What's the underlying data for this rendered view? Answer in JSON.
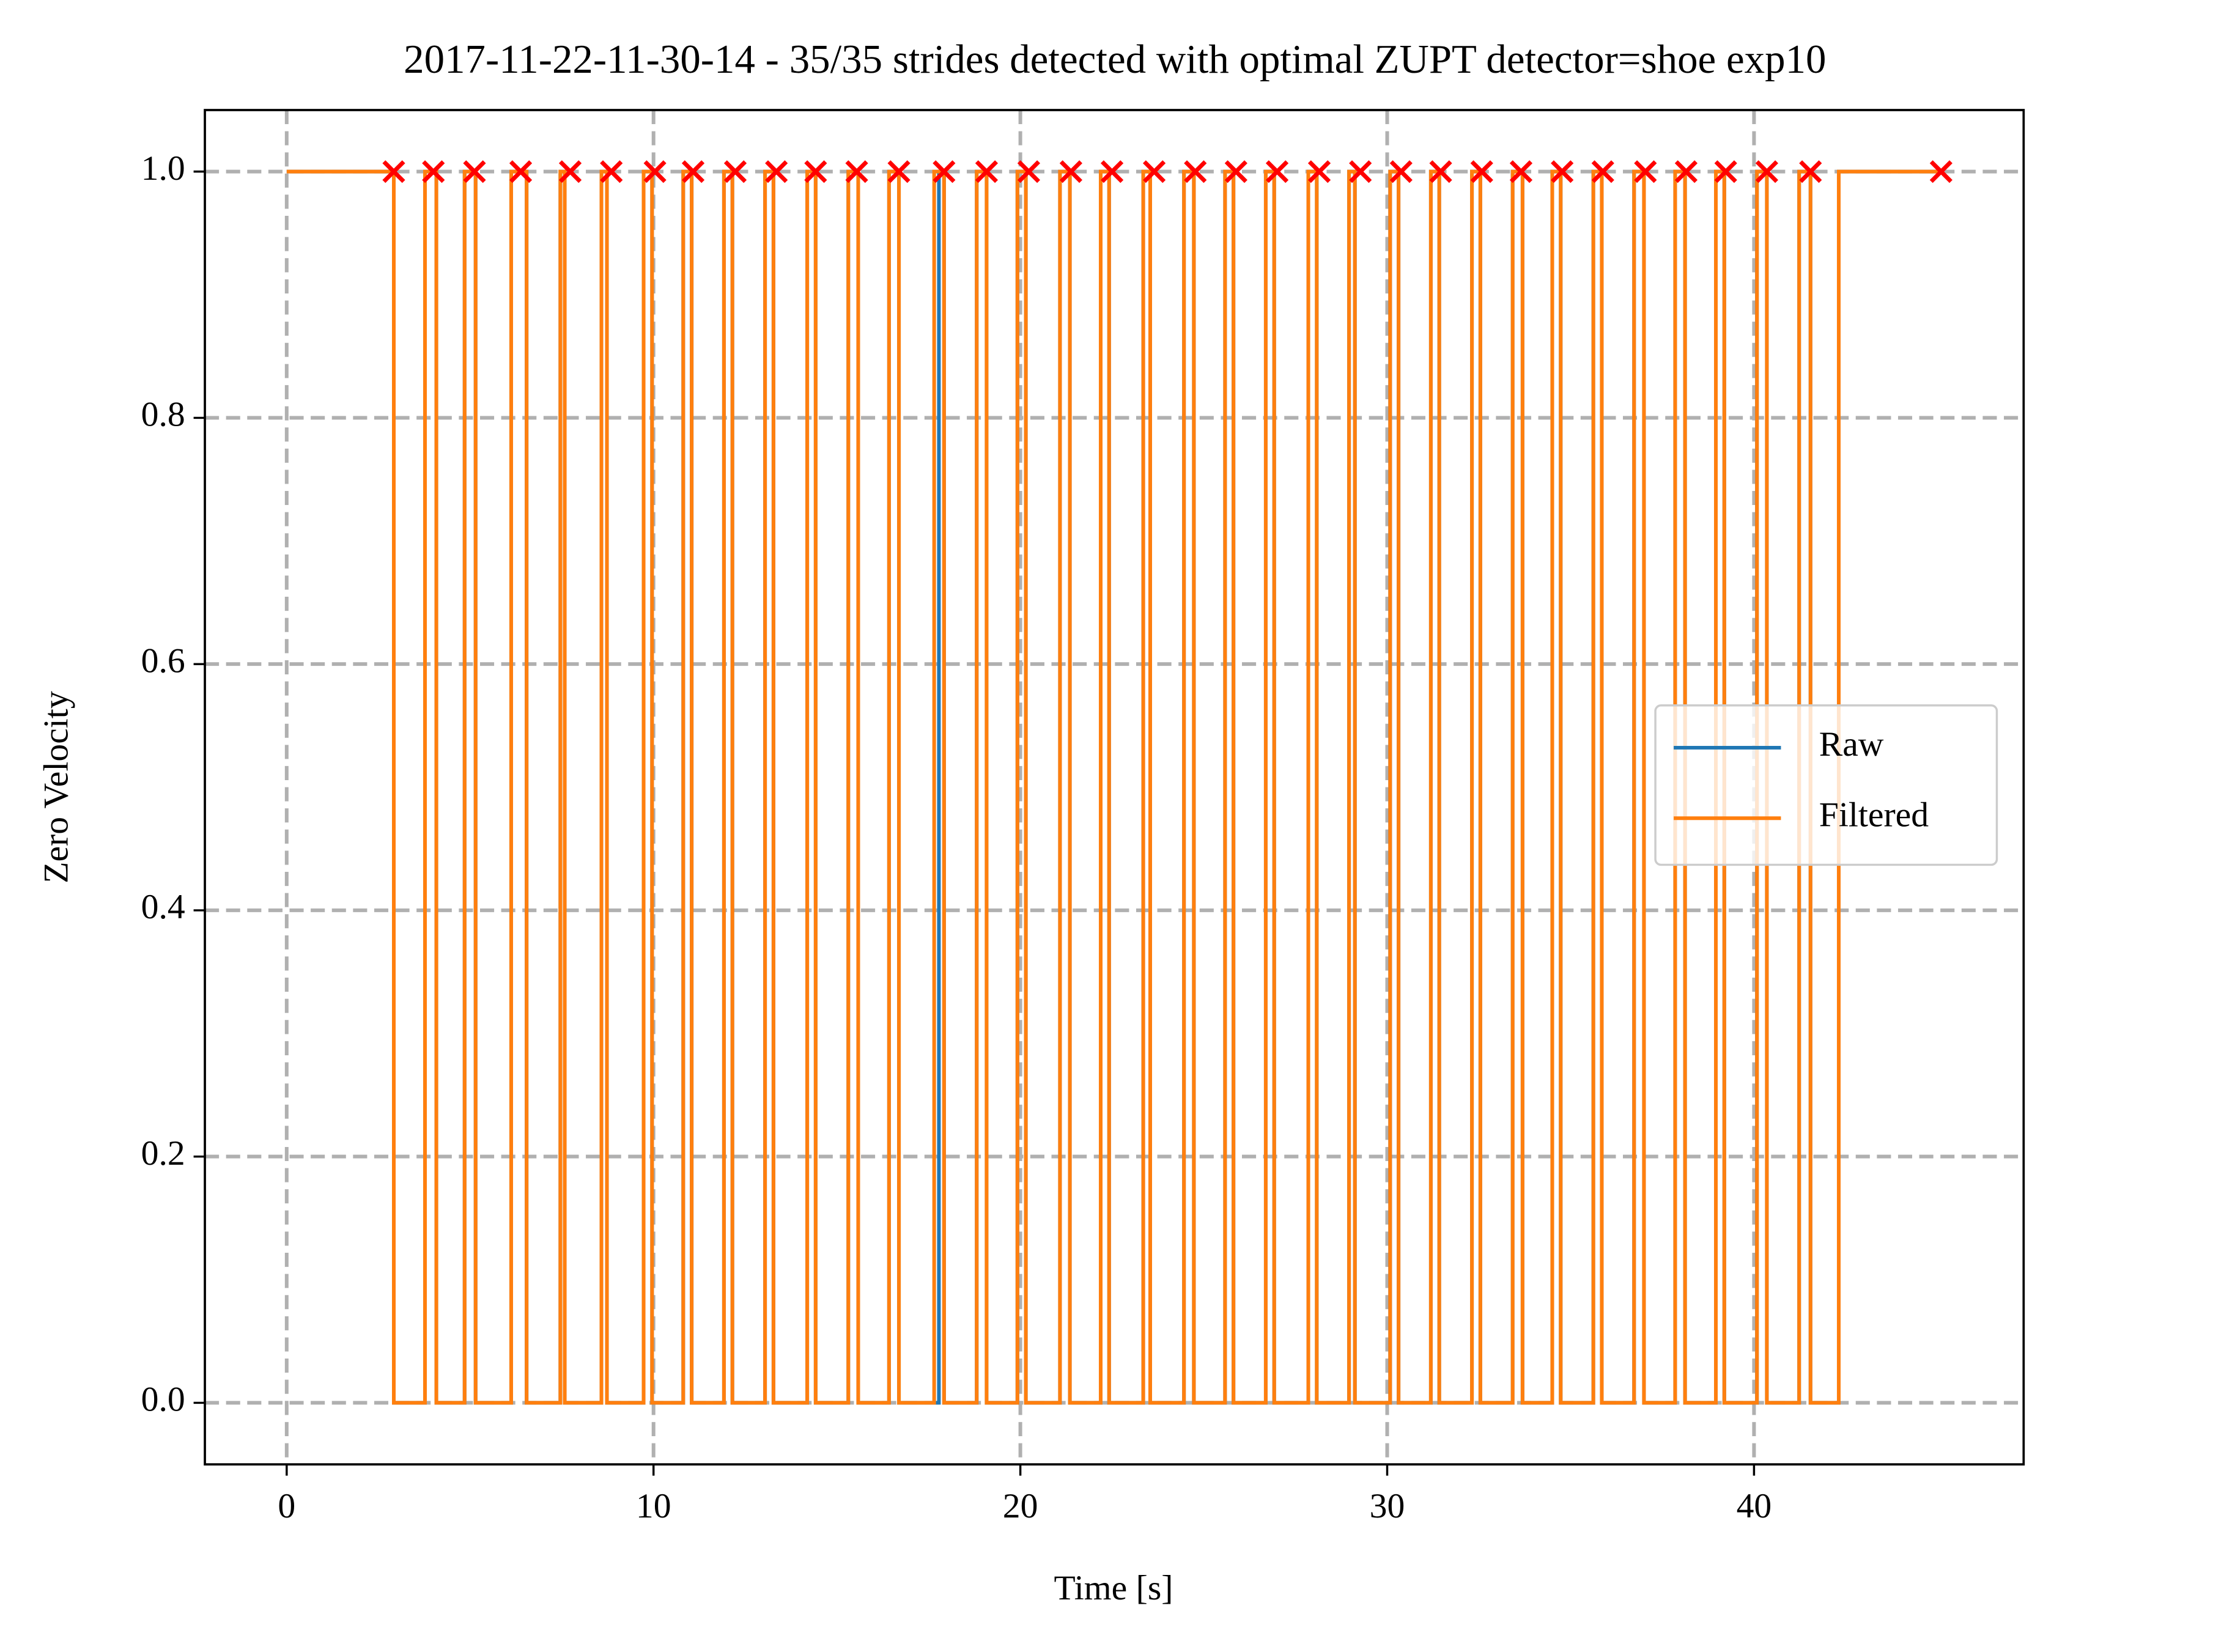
{
  "chart_data": {
    "type": "line",
    "drawstyle": "steps-post",
    "title": "2017-11-22-11-30-14 - 35/35 strides detected with optimal ZUPT detector=shoe exp10",
    "xlabel": "Time [s]",
    "ylabel": "Zero Velocity",
    "xlim": [
      -2.23,
      47.35
    ],
    "ylim": [
      -0.05,
      1.05
    ],
    "xticks": [
      0,
      10,
      20,
      30,
      40
    ],
    "yticks": [
      {
        "value": 0,
        "label": "0.0"
      },
      {
        "value": 0.2,
        "label": "0.2"
      },
      {
        "value": 0.4,
        "label": "0.4"
      },
      {
        "value": 0.6,
        "label": "0.6"
      },
      {
        "value": 0.8,
        "label": "0.8"
      },
      {
        "value": 1,
        "label": "1.0"
      }
    ],
    "grid": true,
    "legend": "center right",
    "series": [
      {
        "name": "Raw",
        "color": "#1f77b4",
        "x": [
          0,
          2.92,
          3.77,
          4.08,
          4.85,
          5.15,
          6.12,
          6.54,
          7.46,
          7.58,
          8.58,
          8.73,
          9.73,
          9.96,
          10.81,
          11.04,
          11.92,
          12.15,
          13.04,
          13.27,
          14.19,
          14.42,
          15.31,
          15.58,
          16.42,
          16.69,
          17.78,
          17.92,
          18.81,
          19.08,
          19.92,
          20.15,
          21.08,
          21.35,
          22.19,
          22.42,
          23.35,
          23.54,
          24.46,
          24.73,
          25.58,
          25.81,
          26.69,
          26.92,
          27.85,
          28.08,
          28.96,
          29.12,
          30.08,
          30.31,
          31.19,
          31.42,
          32.31,
          32.54,
          33.42,
          33.69,
          34.5,
          34.73,
          35.62,
          35.85,
          36.73,
          37.0,
          37.85,
          38.12,
          38.96,
          39.19,
          40.08,
          40.35,
          41.23,
          41.54,
          42.31,
          45.1
        ],
        "values": [
          1,
          0,
          1,
          0,
          1,
          0,
          1,
          0,
          1,
          0,
          1,
          0,
          1,
          0,
          1,
          0,
          1,
          0,
          1,
          0,
          1,
          0,
          1,
          0,
          1,
          0,
          1,
          0,
          1,
          0,
          1,
          0,
          1,
          0,
          1,
          0,
          1,
          0,
          1,
          0,
          1,
          0,
          1,
          0,
          1,
          0,
          1,
          0,
          1,
          0,
          1,
          0,
          1,
          0,
          1,
          0,
          1,
          0,
          1,
          0,
          1,
          0,
          1,
          0,
          1,
          0,
          1,
          0,
          1,
          0,
          1,
          1
        ]
      },
      {
        "name": "Filtered",
        "color": "#ff7f0e",
        "x": [
          0,
          2.92,
          3.77,
          4.08,
          4.85,
          5.15,
          6.12,
          6.54,
          7.46,
          7.58,
          8.58,
          8.73,
          9.73,
          9.96,
          10.81,
          11.04,
          11.92,
          12.15,
          13.04,
          13.27,
          14.19,
          14.42,
          15.31,
          15.58,
          16.42,
          16.69,
          17.65,
          17.92,
          18.81,
          19.08,
          19.92,
          20.15,
          21.08,
          21.35,
          22.19,
          22.42,
          23.35,
          23.54,
          24.46,
          24.73,
          25.58,
          25.81,
          26.69,
          26.92,
          27.85,
          28.08,
          28.96,
          29.12,
          30.08,
          30.31,
          31.19,
          31.42,
          32.31,
          32.54,
          33.42,
          33.69,
          34.5,
          34.73,
          35.62,
          35.85,
          36.73,
          37.0,
          37.85,
          38.12,
          38.96,
          39.19,
          40.08,
          40.35,
          41.23,
          41.54,
          42.31,
          45.1
        ],
        "values": [
          1,
          0,
          1,
          0,
          1,
          0,
          1,
          0,
          1,
          0,
          1,
          0,
          1,
          0,
          1,
          0,
          1,
          0,
          1,
          0,
          1,
          0,
          1,
          0,
          1,
          0,
          1,
          0,
          1,
          0,
          1,
          0,
          1,
          0,
          1,
          0,
          1,
          0,
          1,
          0,
          1,
          0,
          1,
          0,
          1,
          0,
          1,
          0,
          1,
          0,
          1,
          0,
          1,
          0,
          1,
          0,
          1,
          0,
          1,
          0,
          1,
          0,
          1,
          0,
          1,
          0,
          1,
          0,
          1,
          0,
          1,
          1
        ]
      }
    ],
    "markers": {
      "color": "#ff0000",
      "x": [
        2.92,
        4.0,
        5.12,
        6.38,
        7.73,
        8.85,
        10.04,
        11.08,
        12.23,
        13.35,
        14.42,
        15.54,
        16.69,
        17.92,
        19.08,
        20.23,
        21.38,
        22.5,
        23.65,
        24.77,
        25.88,
        27.0,
        28.15,
        29.27,
        30.38,
        31.46,
        32.58,
        33.65,
        34.77,
        35.88,
        37.04,
        38.15,
        39.23,
        40.35,
        41.54,
        45.1
      ],
      "values": [
        1,
        1,
        1,
        1,
        1,
        1,
        1,
        1,
        1,
        1,
        1,
        1,
        1,
        1,
        1,
        1,
        1,
        1,
        1,
        1,
        1,
        1,
        1,
        1,
        1,
        1,
        1,
        1,
        1,
        1,
        1,
        1,
        1,
        1,
        1,
        1
      ]
    }
  }
}
